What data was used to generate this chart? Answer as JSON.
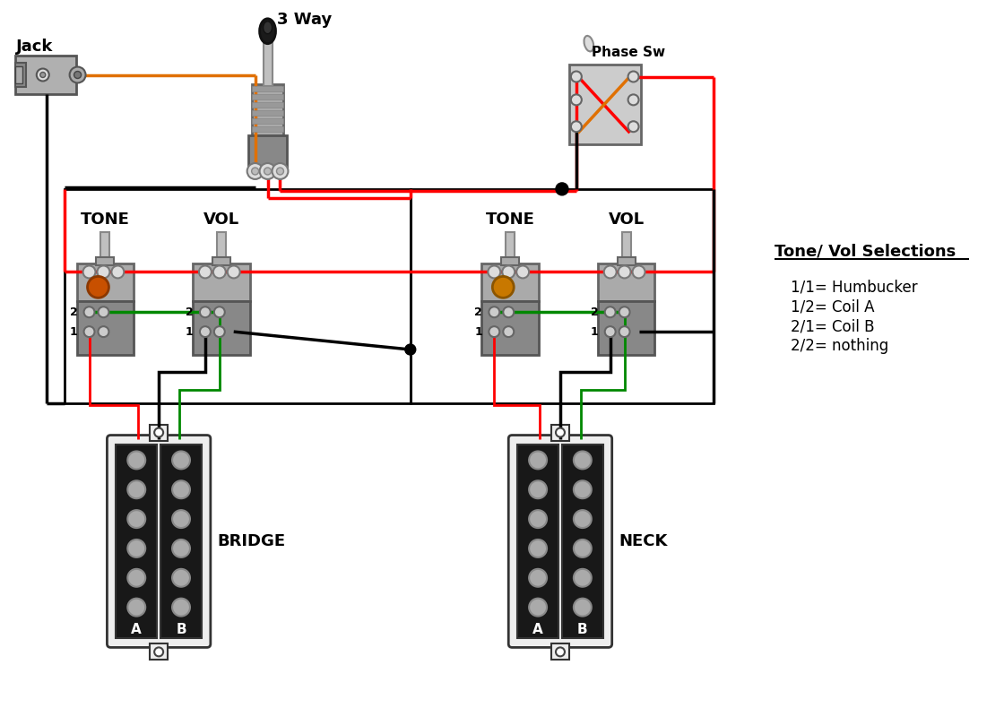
{
  "background_color": "#ffffff",
  "text_jack": "Jack",
  "text_3way": "3 Way",
  "text_phase": "Phase Sw",
  "text_tone1": "TONE",
  "text_vol1": "VOL",
  "text_tone2": "TONE",
  "text_vol2": "VOL",
  "text_bridge": "BRIDGE",
  "text_neck": "NECK",
  "text_legend_title": "Tone/ Vol Selections",
  "text_legend_1": "1/1= Humbucker",
  "text_legend_2": "1/2= Coil A",
  "text_legend_3": "2/1= Coil B",
  "text_legend_4": "2/2= nothing",
  "color_red": "#ff0000",
  "color_black": "#000000",
  "color_orange": "#e07000",
  "color_green": "#008800",
  "color_gray_lt": "#cccccc",
  "color_gray_md": "#999999",
  "color_gray_dk": "#666666",
  "color_gray_body": "#888888",
  "color_pickup_body": "#1a1a1a",
  "color_pickup_case": "#f0f0f0",
  "color_pole": "#aaaaaa"
}
